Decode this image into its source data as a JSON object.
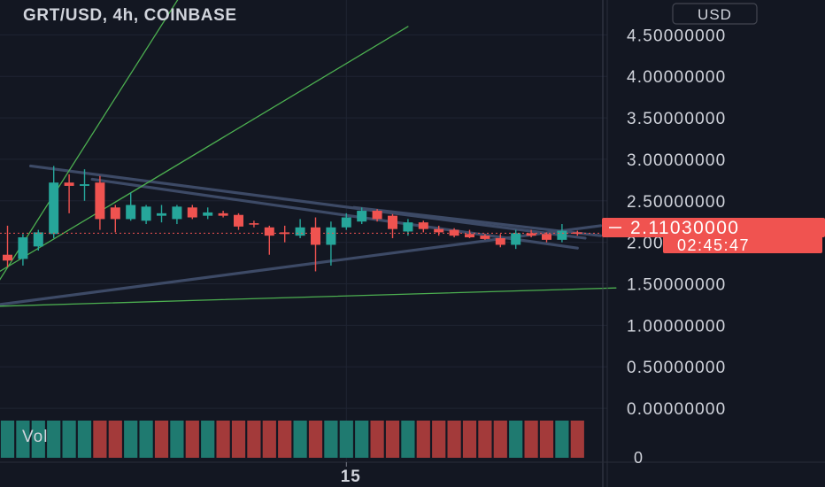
{
  "chart_data": {
    "type": "candlestick",
    "title": "GRT/USD, 4h, COINBASE",
    "currency": "USD",
    "y_ticks": [
      "4.50000000",
      "4.00000000",
      "3.50000000",
      "3.00000000",
      "2.50000000",
      "2.00000000",
      "1.50000000",
      "1.00000000",
      "0.50000000",
      "0.00000000"
    ],
    "y_tick_values": [
      4.5,
      4.0,
      3.5,
      3.0,
      2.5,
      2.0,
      1.5,
      1.0,
      0.5,
      0.0
    ],
    "ylim": [
      -0.65,
      4.92
    ],
    "x_tick_label": "15",
    "x_tick_index": 22,
    "last_price": "2.11030000",
    "last_price_value": 2.1103,
    "countdown": "02:45:47",
    "volume_label": "Vol",
    "volume_axis_label": "0",
    "colors": {
      "background": "#131722",
      "up": "#26a69a",
      "down": "#ef5350",
      "volume_up": "#1f7a70",
      "volume_down": "#a33a3a",
      "grid": "#1f2433",
      "text": "#d1d4dc",
      "trendline_gray": "#3d4a66",
      "trendline_green": "#4caf50",
      "price_label": "#f05350"
    },
    "candles": [
      {
        "o": 1.85,
        "h": 2.2,
        "l": 1.7,
        "c": 1.78
      },
      {
        "o": 1.8,
        "h": 2.1,
        "l": 1.72,
        "c": 2.06
      },
      {
        "o": 1.95,
        "h": 2.15,
        "l": 1.9,
        "c": 2.12
      },
      {
        "o": 2.1,
        "h": 2.92,
        "l": 2.05,
        "c": 2.72
      },
      {
        "o": 2.72,
        "h": 2.82,
        "l": 2.35,
        "c": 2.68
      },
      {
        "o": 2.68,
        "h": 2.88,
        "l": 2.5,
        "c": 2.7
      },
      {
        "o": 2.72,
        "h": 2.8,
        "l": 2.15,
        "c": 2.28
      },
      {
        "o": 2.42,
        "h": 2.45,
        "l": 2.12,
        "c": 2.28
      },
      {
        "o": 2.28,
        "h": 2.6,
        "l": 2.26,
        "c": 2.45
      },
      {
        "o": 2.26,
        "h": 2.45,
        "l": 2.22,
        "c": 2.43
      },
      {
        "o": 2.32,
        "h": 2.45,
        "l": 2.24,
        "c": 2.35
      },
      {
        "o": 2.28,
        "h": 2.45,
        "l": 2.22,
        "c": 2.43
      },
      {
        "o": 2.42,
        "h": 2.45,
        "l": 2.28,
        "c": 2.3
      },
      {
        "o": 2.32,
        "h": 2.42,
        "l": 2.28,
        "c": 2.36
      },
      {
        "o": 2.35,
        "h": 2.38,
        "l": 2.3,
        "c": 2.32
      },
      {
        "o": 2.33,
        "h": 2.35,
        "l": 2.15,
        "c": 2.19
      },
      {
        "o": 2.23,
        "h": 2.26,
        "l": 2.18,
        "c": 2.22
      },
      {
        "o": 2.18,
        "h": 2.2,
        "l": 1.85,
        "c": 2.08
      },
      {
        "o": 2.12,
        "h": 2.2,
        "l": 2.0,
        "c": 2.1
      },
      {
        "o": 2.08,
        "h": 2.28,
        "l": 2.05,
        "c": 2.18
      },
      {
        "o": 2.18,
        "h": 2.3,
        "l": 1.65,
        "c": 1.97
      },
      {
        "o": 1.97,
        "h": 2.25,
        "l": 1.72,
        "c": 2.18
      },
      {
        "o": 2.18,
        "h": 2.35,
        "l": 2.15,
        "c": 2.3
      },
      {
        "o": 2.25,
        "h": 2.42,
        "l": 2.22,
        "c": 2.38
      },
      {
        "o": 2.38,
        "h": 2.4,
        "l": 2.25,
        "c": 2.28
      },
      {
        "o": 2.32,
        "h": 2.34,
        "l": 2.05,
        "c": 2.16
      },
      {
        "o": 2.13,
        "h": 2.28,
        "l": 2.08,
        "c": 2.24
      },
      {
        "o": 2.24,
        "h": 2.26,
        "l": 2.12,
        "c": 2.16
      },
      {
        "o": 2.16,
        "h": 2.2,
        "l": 2.08,
        "c": 2.12
      },
      {
        "o": 2.15,
        "h": 2.17,
        "l": 2.06,
        "c": 2.08
      },
      {
        "o": 2.1,
        "h": 2.15,
        "l": 2.05,
        "c": 2.06
      },
      {
        "o": 2.08,
        "h": 2.1,
        "l": 2.03,
        "c": 2.04
      },
      {
        "o": 2.05,
        "h": 2.1,
        "l": 1.94,
        "c": 1.97
      },
      {
        "o": 1.97,
        "h": 2.15,
        "l": 1.92,
        "c": 2.11
      },
      {
        "o": 2.11,
        "h": 2.15,
        "l": 2.06,
        "c": 2.08
      },
      {
        "o": 2.1,
        "h": 2.12,
        "l": 2.0,
        "c": 2.03
      },
      {
        "o": 2.03,
        "h": 2.22,
        "l": 2.0,
        "c": 2.14
      },
      {
        "o": 2.12,
        "h": 2.14,
        "l": 2.08,
        "c": 2.11
      }
    ],
    "volumes": [
      {
        "v": 0.7,
        "up": true
      },
      {
        "v": 0.7,
        "up": true
      },
      {
        "v": 0.7,
        "up": true
      },
      {
        "v": 0.7,
        "up": true
      },
      {
        "v": 0.7,
        "up": true
      },
      {
        "v": 0.7,
        "up": true
      },
      {
        "v": 0.7,
        "up": false
      },
      {
        "v": 0.7,
        "up": false
      },
      {
        "v": 0.7,
        "up": true
      },
      {
        "v": 0.7,
        "up": true
      },
      {
        "v": 0.7,
        "up": false
      },
      {
        "v": 0.7,
        "up": true
      },
      {
        "v": 0.7,
        "up": false
      },
      {
        "v": 0.7,
        "up": true
      },
      {
        "v": 0.7,
        "up": false
      },
      {
        "v": 0.7,
        "up": false
      },
      {
        "v": 0.7,
        "up": false
      },
      {
        "v": 0.7,
        "up": false
      },
      {
        "v": 0.7,
        "up": false
      },
      {
        "v": 0.7,
        "up": true
      },
      {
        "v": 0.7,
        "up": false
      },
      {
        "v": 0.7,
        "up": true
      },
      {
        "v": 0.7,
        "up": true
      },
      {
        "v": 0.7,
        "up": true
      },
      {
        "v": 0.7,
        "up": false
      },
      {
        "v": 0.7,
        "up": false
      },
      {
        "v": 0.7,
        "up": true
      },
      {
        "v": 0.7,
        "up": false
      },
      {
        "v": 0.7,
        "up": false
      },
      {
        "v": 0.7,
        "up": false
      },
      {
        "v": 0.7,
        "up": false
      },
      {
        "v": 0.7,
        "up": false
      },
      {
        "v": 0.7,
        "up": false
      },
      {
        "v": 0.7,
        "up": true
      },
      {
        "v": 0.7,
        "up": false
      },
      {
        "v": 0.7,
        "up": false
      },
      {
        "v": 0.7,
        "up": true
      },
      {
        "v": 0.7,
        "up": false
      }
    ],
    "trendlines": [
      {
        "kind": "gray",
        "from": {
          "i": 1.5,
          "p": 2.92
        },
        "to": {
          "i": 37.5,
          "p": 2.05
        }
      },
      {
        "kind": "gray",
        "from": {
          "i": 5.5,
          "p": 2.76
        },
        "to": {
          "i": 37.0,
          "p": 1.93
        }
      },
      {
        "kind": "gray",
        "from": {
          "i": 22.5,
          "p": 2.42
        },
        "to": {
          "i": 38.5,
          "p": 2.08
        }
      },
      {
        "kind": "gray",
        "from": {
          "i": -0.5,
          "p": 1.25
        },
        "to": {
          "i": 38.5,
          "p": 2.2
        }
      },
      {
        "kind": "green",
        "from": {
          "i": -0.5,
          "p": 1.55
        },
        "to": {
          "i": 12.0,
          "p": 5.2
        }
      },
      {
        "kind": "green",
        "from": {
          "i": -0.5,
          "p": 1.65
        },
        "to": {
          "i": 26.0,
          "p": 4.6
        }
      },
      {
        "kind": "green",
        "from": {
          "i": -0.5,
          "p": 1.23
        },
        "to": {
          "i": 39.5,
          "p": 1.45
        }
      }
    ]
  }
}
